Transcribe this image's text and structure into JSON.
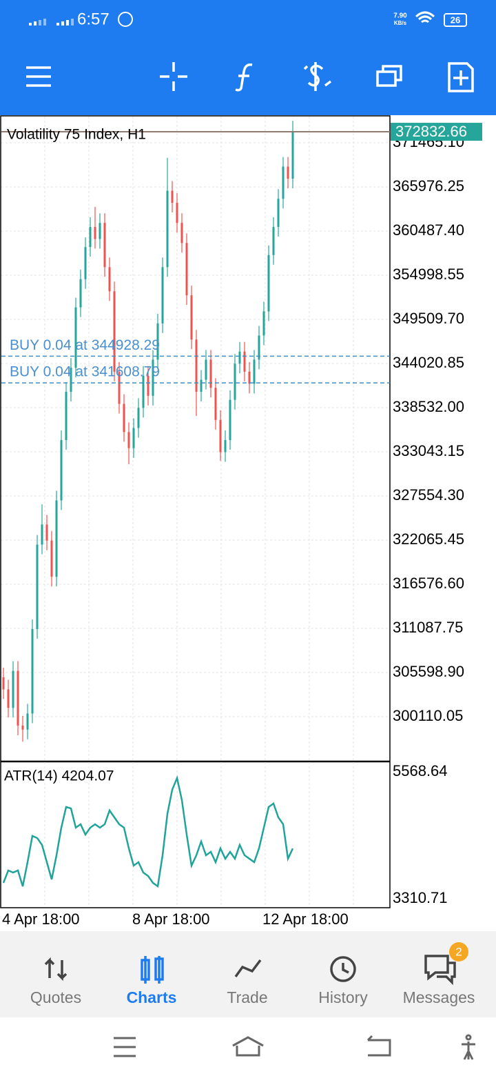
{
  "status_bar": {
    "time": "6:57",
    "net_speed": "7.90",
    "net_unit": "KB/s",
    "battery": "26"
  },
  "chart_data": [
    {
      "type": "candlestick",
      "title": "Volatility 75 Index, H1",
      "categories": [
        "4 Apr 18:00",
        null,
        null,
        null,
        null,
        null,
        null,
        null,
        null,
        null,
        null,
        null,
        null,
        null,
        null,
        null,
        null,
        null,
        null,
        null,
        null,
        null,
        null,
        null,
        null,
        null,
        null,
        "8 Apr 18:00",
        null,
        null,
        null,
        null,
        null,
        null,
        null,
        null,
        null,
        null,
        null,
        null,
        null,
        null,
        null,
        null,
        null,
        null,
        null,
        null,
        null,
        null,
        null,
        null,
        null,
        null,
        "12 Apr 18:00",
        null,
        null,
        null,
        null,
        null,
        null
      ],
      "open": [
        305000,
        303500,
        301200,
        305800,
        299000,
        298500,
        300500,
        311000,
        321500,
        324000,
        322000,
        317500,
        327000,
        334500,
        340500,
        343500,
        351000,
        354500,
        358500,
        361000,
        359500,
        361500,
        356000,
        353000,
        343000,
        339000,
        335500,
        333500,
        336000,
        338500,
        342500,
        340000,
        344500,
        349000,
        356000,
        365500,
        364000,
        361500,
        359000,
        352500,
        347000,
        340500,
        342000,
        344500,
        341000,
        337000,
        333000,
        334500,
        339500,
        344000,
        345500,
        343000,
        341500,
        344500,
        347500,
        350500,
        357500,
        361000,
        364500,
        368500,
        367000
      ],
      "high": [
        306200,
        304700,
        307000,
        307000,
        300200,
        301700,
        312200,
        322700,
        326500,
        325200,
        323200,
        328200,
        335700,
        341700,
        344700,
        352200,
        355700,
        359700,
        362200,
        363500,
        362700,
        362700,
        357200,
        354200,
        344200,
        340200,
        336700,
        337200,
        339700,
        343700,
        343700,
        345700,
        350200,
        357200,
        369600,
        366700,
        365200,
        362700,
        360200,
        353700,
        348200,
        343200,
        345700,
        345700,
        342200,
        338200,
        335700,
        340700,
        345200,
        346700,
        346700,
        344200,
        345700,
        348700,
        351700,
        358700,
        362200,
        365700,
        369700,
        369700,
        374200
      ],
      "low": [
        302300,
        300000,
        300000,
        297800,
        297000,
        297300,
        299300,
        309800,
        320300,
        320800,
        316300,
        316300,
        325800,
        333300,
        339300,
        342300,
        349800,
        353300,
        357300,
        358300,
        358300,
        354800,
        351800,
        341800,
        337800,
        334300,
        331500,
        332300,
        334800,
        337300,
        338800,
        338800,
        343300,
        347800,
        354800,
        362800,
        360300,
        357800,
        351300,
        345800,
        337500,
        339300,
        340800,
        339800,
        335800,
        331900,
        331800,
        333300,
        338300,
        342800,
        341800,
        340300,
        340300,
        343300,
        346300,
        349300,
        356300,
        359800,
        363300,
        365800,
        365800
      ],
      "close": [
        303500,
        301200,
        305800,
        299000,
        298500,
        300500,
        311000,
        321500,
        324000,
        322000,
        317500,
        327000,
        334500,
        340500,
        343500,
        351000,
        354500,
        358500,
        361000,
        359500,
        361500,
        356000,
        353000,
        343000,
        339000,
        335500,
        333500,
        336000,
        338500,
        342500,
        340000,
        344500,
        349000,
        356000,
        365500,
        364000,
        361500,
        359000,
        352500,
        347000,
        340500,
        342000,
        344500,
        341000,
        337000,
        333000,
        334500,
        339500,
        344000,
        345500,
        343000,
        341500,
        344500,
        347500,
        350500,
        357500,
        361000,
        364500,
        368500,
        367000,
        372832.66
      ],
      "up_color": "#26a69a",
      "down_color": "#ef5350",
      "ylim": [
        294535,
        374809
      ],
      "yticks": [
        {
          "value": 371465.1,
          "label": "371465.10"
        },
        365976.25,
        {
          "value": 360487.4,
          "label": "360487.40"
        },
        354998.55,
        {
          "value": 349509.7,
          "label": "349509.70"
        },
        344020.85,
        {
          "value": 338532,
          "label": "338532.00"
        },
        333043.15,
        {
          "value": 327554.3,
          "label": "327554.30"
        },
        322065.45,
        {
          "value": 316576.6,
          "label": "316576.60"
        },
        311087.75,
        {
          "value": 305598.9,
          "label": "305598.90"
        },
        300110.05
      ],
      "current_price": 372832.66,
      "trades": [
        {
          "label": "BUY 0.04 at 344928.29",
          "price": 344928.29
        },
        {
          "label": "BUY 0.04 at 341608.79",
          "price": 341608.79
        }
      ],
      "grid": true
    },
    {
      "type": "line",
      "title": "ATR(14) 4204.07",
      "color": "#1fa39a",
      "values": [
        3593,
        3814,
        3777,
        3814,
        3532,
        3961,
        4428,
        4391,
        4268,
        3961,
        3655,
        4084,
        4575,
        4943,
        4918,
        4575,
        4636,
        4452,
        4575,
        4636,
        4575,
        4636,
        4882,
        4759,
        4636,
        4575,
        4207,
        3900,
        3961,
        3777,
        3716,
        3593,
        3532,
        4084,
        4820,
        5250,
        5458,
        5066,
        4452,
        3900,
        4084,
        4329,
        4084,
        4145,
        3961,
        4207,
        4023,
        4145,
        4023,
        4268,
        4084,
        4023,
        3961,
        4207,
        4575,
        4943,
        5004,
        4759,
        4636,
        4023,
        4204.07
      ],
      "ylim": [
        3310.71,
        5568.64
      ],
      "yticks": [
        3310.71,
        5568.64
      ]
    }
  ],
  "bottom_nav": {
    "items": [
      "Quotes",
      "Charts",
      "Trade",
      "History",
      "Messages"
    ],
    "active": 1,
    "badge": 2
  }
}
